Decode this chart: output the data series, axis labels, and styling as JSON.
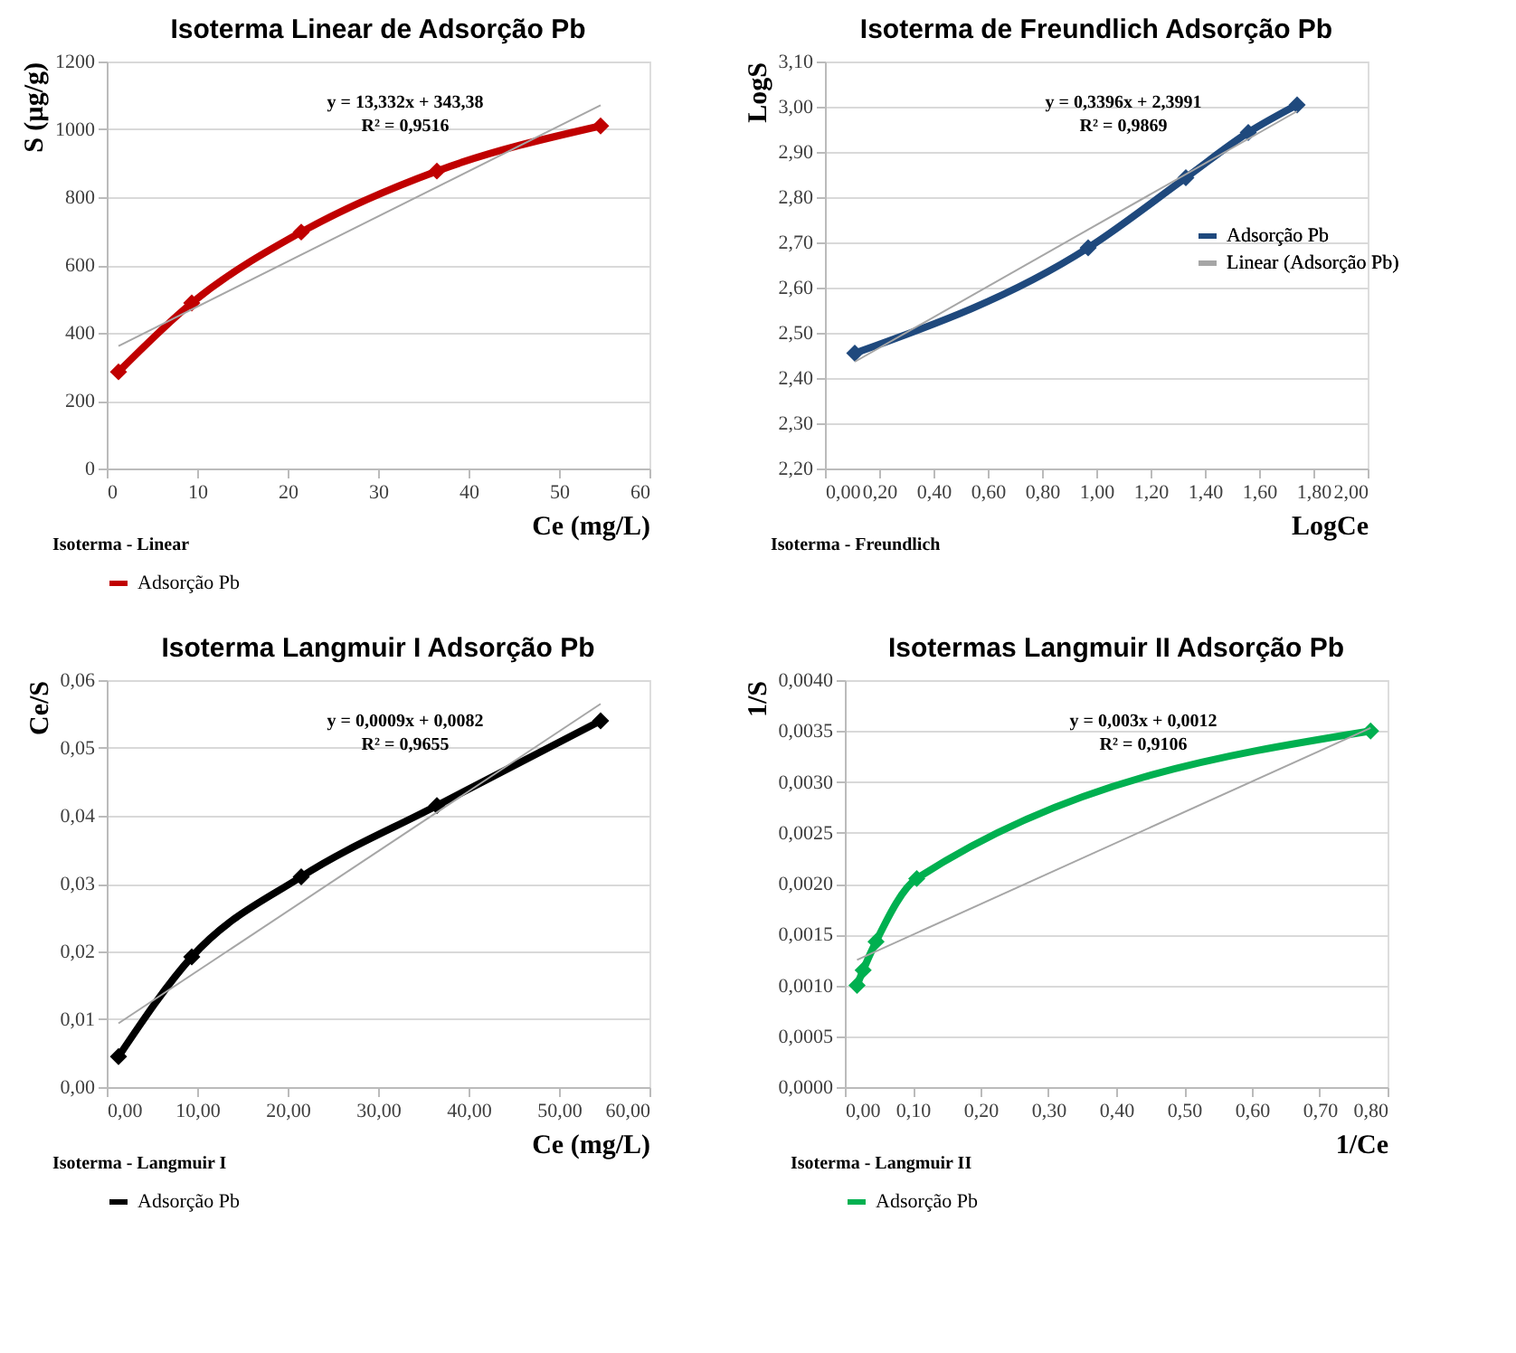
{
  "chart_data": [
    {
      "type": "line",
      "title": "Isoterma Linear de Adsorção Pb",
      "xlabel": "Ce (mg/L)",
      "ylabel": "S (µg/g)",
      "xlim": [
        0,
        60
      ],
      "xticks": [
        0,
        10,
        20,
        30,
        40,
        50,
        60
      ],
      "ylim": [
        0,
        1200
      ],
      "yticks": [
        0,
        200,
        400,
        600,
        800,
        1000,
        1200
      ],
      "grid": "y",
      "legend": "bottom",
      "line_style": "solid",
      "series": [
        {
          "name": "Adsorção Pb",
          "color": "#c00000",
          "marker": "diamond",
          "x": [
            1.3,
            9.4,
            21.5,
            36.5,
            54.6
          ],
          "values": [
            285,
            488,
            697,
            877,
            1010
          ]
        },
        {
          "type": "line",
          "color": "#a6a6a6",
          "marker": "none",
          "x": [
            1.3,
            54.6
          ],
          "values": [
            361,
            1071
          ]
        }
      ],
      "annotations": [
        "y = 13,332x + 343,38",
        "R² = 0,9516",
        "Isoterma - Linear"
      ]
    },
    {
      "type": "line",
      "title": "Isoterma de Freundlich Adsorção Pb",
      "xlabel": "LogCe",
      "ylabel": "LogS",
      "xlim": [
        0,
        2
      ],
      "xticks": [
        {
          "value": 0,
          "label": "0,00"
        },
        {
          "value": 0.2,
          "label": "0,20"
        },
        {
          "value": 0.4,
          "label": "0,40"
        },
        {
          "value": 0.6,
          "label": "0,60"
        },
        {
          "value": 0.8,
          "label": "0,80"
        },
        {
          "value": 1.0,
          "label": "1,00"
        },
        {
          "value": 1.2,
          "label": "1,20"
        },
        {
          "value": 1.4,
          "label": "1,40"
        },
        {
          "value": 1.6,
          "label": "1,60"
        },
        {
          "value": 1.8,
          "label": "1,80"
        },
        {
          "value": 2.0,
          "label": "2,00"
        }
      ],
      "ylim": [
        2.2,
        3.1
      ],
      "yticks": [
        {
          "value": 2.2,
          "label": "2,20"
        },
        {
          "value": 2.3,
          "label": "2,30"
        },
        {
          "value": 2.4,
          "label": "2,40"
        },
        {
          "value": 2.5,
          "label": "2,50"
        },
        {
          "value": 2.6,
          "label": "2,60"
        },
        {
          "value": 2.7,
          "label": "2,70"
        },
        {
          "value": 2.8,
          "label": "2,80"
        },
        {
          "value": 2.9,
          "label": "2,90"
        },
        {
          "value": 3.0,
          "label": "3,00"
        },
        {
          "value": 3.1,
          "label": "3,10"
        }
      ],
      "grid": "y",
      "legend": "right",
      "line_style": "solid",
      "series": [
        {
          "name": "Adsorção Pb",
          "color": "#1f497d",
          "marker": "diamond",
          "x": [
            0.11,
            0.97,
            1.33,
            1.56,
            1.74
          ],
          "values": [
            2.455,
            2.688,
            2.843,
            2.943,
            3.004
          ]
        },
        {
          "type": "line",
          "name": "Linear (Adsorção Pb)",
          "color": "#a6a6a6",
          "marker": "none",
          "x": [
            0.11,
            1.74
          ],
          "values": [
            2.436,
            2.99
          ]
        }
      ],
      "annotations": [
        "y = 0,3396x + 2,3991",
        "R² = 0,9869",
        "Isoterma - Freundlich"
      ]
    },
    {
      "type": "line",
      "title": "Isoterma Langmuir I Adsorção Pb",
      "xlabel": "Ce (mg/L)",
      "ylabel": "Ce/S",
      "xlim": [
        0,
        60
      ],
      "xticks": [
        {
          "value": 0,
          "label": "0,00"
        },
        {
          "value": 10,
          "label": "10,00"
        },
        {
          "value": 20,
          "label": "20,00"
        },
        {
          "value": 30,
          "label": "30,00"
        },
        {
          "value": 40,
          "label": "40,00"
        },
        {
          "value": 50,
          "label": "50,00"
        },
        {
          "value": 60,
          "label": "60,00"
        }
      ],
      "ylim": [
        0,
        0.06
      ],
      "yticks": [
        {
          "value": 0,
          "label": "0,00"
        },
        {
          "value": 0.01,
          "label": "0,01"
        },
        {
          "value": 0.02,
          "label": "0,02"
        },
        {
          "value": 0.03,
          "label": "0,03"
        },
        {
          "value": 0.04,
          "label": "0,04"
        },
        {
          "value": 0.05,
          "label": "0,05"
        },
        {
          "value": 0.06,
          "label": "0,06"
        }
      ],
      "grid": "y",
      "legend": "bottom",
      "line_style": "solid",
      "series": [
        {
          "name": "Adsorção Pb",
          "color": "#000000",
          "marker": "diamond",
          "x": [
            1.3,
            9.4,
            21.5,
            36.5,
            54.6
          ],
          "values": [
            0.0045,
            0.0192,
            0.031,
            0.0415,
            0.054
          ]
        },
        {
          "type": "line",
          "color": "#a6a6a6",
          "marker": "none",
          "x": [
            1.3,
            54.6
          ],
          "values": [
            0.0094,
            0.0565
          ]
        }
      ],
      "annotations": [
        "y = 0,0009x + 0,0082",
        "R² = 0,9655",
        "Isoterma - Langmuir I"
      ]
    },
    {
      "type": "line",
      "title": "Isotermas Langmuir II Adsorção Pb",
      "xlabel": "1/Ce",
      "ylabel": "1/S",
      "xlim": [
        0,
        0.8
      ],
      "xticks": [
        {
          "value": 0,
          "label": "0,00"
        },
        {
          "value": 0.1,
          "label": "0,10"
        },
        {
          "value": 0.2,
          "label": "0,20"
        },
        {
          "value": 0.3,
          "label": "0,30"
        },
        {
          "value": 0.4,
          "label": "0,40"
        },
        {
          "value": 0.5,
          "label": "0,50"
        },
        {
          "value": 0.6,
          "label": "0,60"
        },
        {
          "value": 0.7,
          "label": "0,70"
        },
        {
          "value": 0.8,
          "label": "0,80"
        }
      ],
      "ylim": [
        0,
        0.004
      ],
      "yticks": [
        {
          "value": 0,
          "label": "0,0000"
        },
        {
          "value": 0.0005,
          "label": "0,0005"
        },
        {
          "value": 0.001,
          "label": "0,0010"
        },
        {
          "value": 0.0015,
          "label": "0,0015"
        },
        {
          "value": 0.002,
          "label": "0,0020"
        },
        {
          "value": 0.0025,
          "label": "0,0025"
        },
        {
          "value": 0.003,
          "label": "0,0030"
        },
        {
          "value": 0.0035,
          "label": "0,0035"
        },
        {
          "value": 0.004,
          "label": "0,0040"
        }
      ],
      "grid": "y",
      "legend": "bottom",
      "line_style": "solid",
      "series": [
        {
          "name": "Adsorção Pb",
          "color": "#00b050",
          "marker": "diamond",
          "x": [
            0.018,
            0.027,
            0.046,
            0.106,
            0.775
          ],
          "values": [
            0.001,
            0.00115,
            0.00143,
            0.00205,
            0.0035
          ]
        },
        {
          "type": "line",
          "color": "#a6a6a6",
          "marker": "none",
          "x": [
            0.018,
            0.775
          ],
          "values": [
            0.00125,
            0.00353
          ]
        }
      ],
      "annotations": [
        "y = 0,003x + 0,0012",
        "R² = 0,9106",
        "Isoterma - Langmuir II"
      ]
    }
  ]
}
